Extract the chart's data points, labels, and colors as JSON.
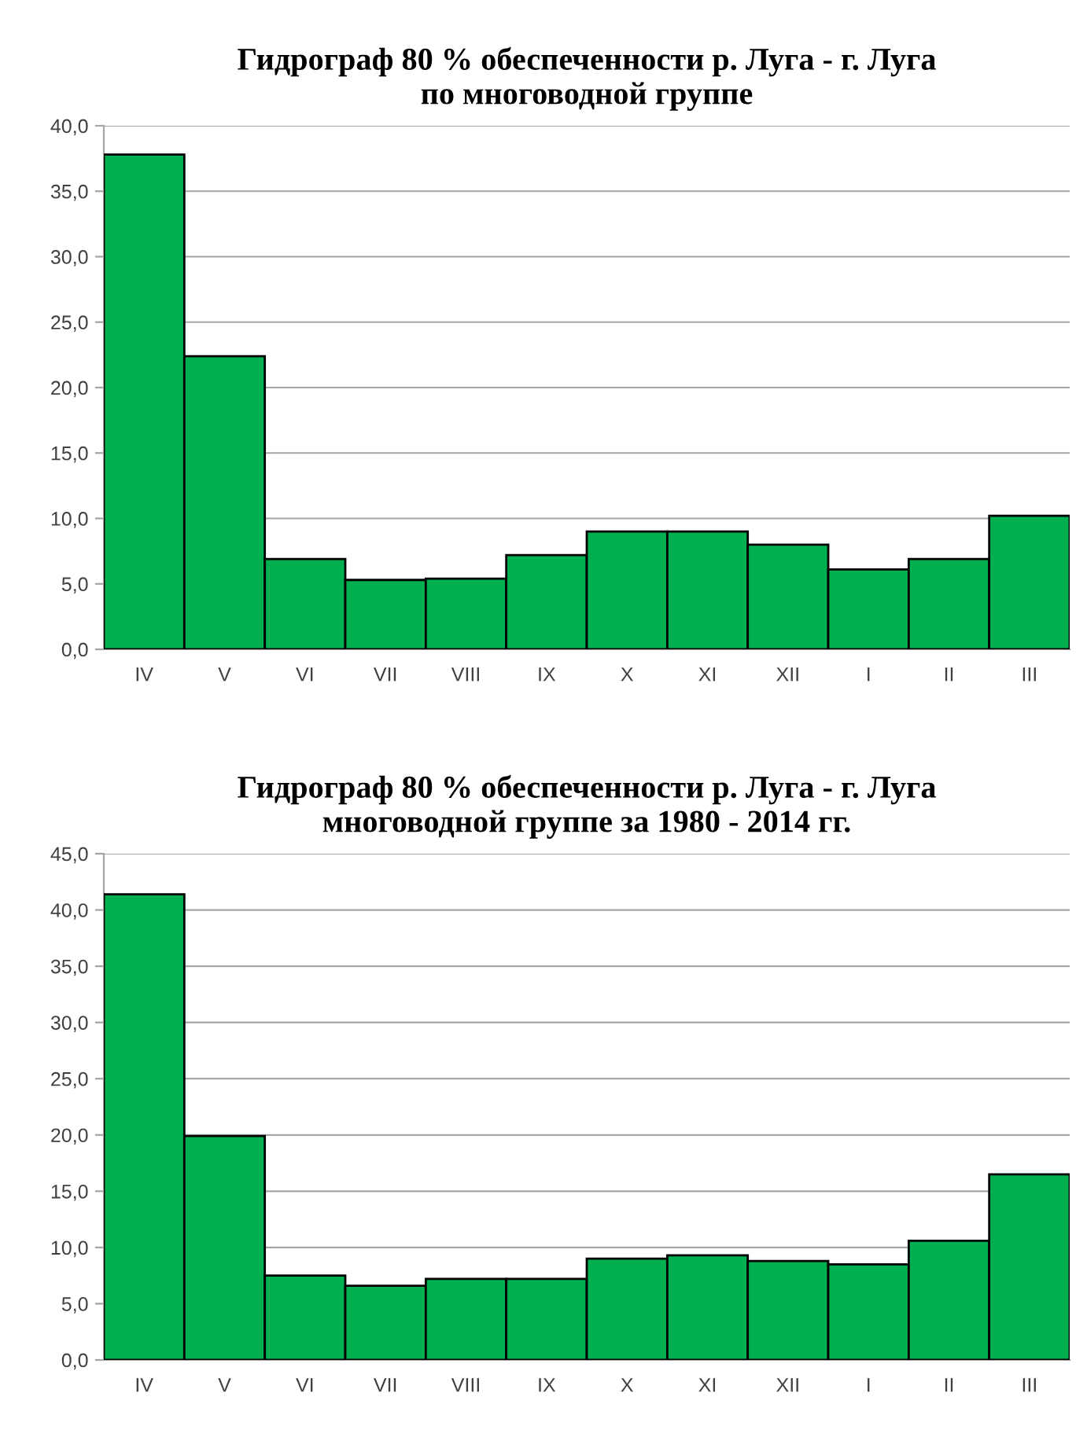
{
  "chart_data": [
    {
      "type": "bar",
      "title": "Гидрограф 80 % обеспеченности р. Луга - г. Луга\nпо многоводной группе",
      "categories": [
        "IV",
        "V",
        "VI",
        "VII",
        "VIII",
        "IX",
        "X",
        "XI",
        "XII",
        "I",
        "II",
        "III"
      ],
      "values": [
        37.8,
        22.4,
        6.9,
        5.3,
        5.4,
        7.2,
        9.0,
        9.0,
        8.0,
        6.1,
        6.9,
        10.2
      ],
      "color": "#00b050",
      "ylim": [
        0,
        40
      ],
      "yticks": [
        {
          "value": 0,
          "label": "0,0"
        },
        {
          "value": 5,
          "label": "5,0"
        },
        {
          "value": 10,
          "label": "10,0"
        },
        {
          "value": 15,
          "label": "15,0"
        },
        {
          "value": 20,
          "label": "20,0"
        },
        {
          "value": 25,
          "label": "25,0"
        },
        {
          "value": 30,
          "label": "30,0"
        },
        {
          "value": 35,
          "label": "35,0"
        },
        {
          "value": 40,
          "label": "40,0"
        }
      ],
      "grid": "y"
    },
    {
      "type": "bar",
      "title": "Гидрограф 80 % обеспеченности р. Луга - г. Луга\nмноговодной группе за 1980 - 2014 гг.",
      "categories": [
        "IV",
        "V",
        "VI",
        "VII",
        "VIII",
        "IX",
        "X",
        "XI",
        "XII",
        "I",
        "II",
        "III"
      ],
      "values": [
        41.4,
        19.9,
        7.5,
        6.6,
        7.2,
        7.2,
        9.0,
        9.3,
        8.8,
        8.5,
        10.6,
        16.5
      ],
      "color": "#00b050",
      "ylim": [
        0,
        45
      ],
      "yticks": [
        {
          "value": 0,
          "label": "0,0"
        },
        {
          "value": 5,
          "label": "5,0"
        },
        {
          "value": 10,
          "label": "10,0"
        },
        {
          "value": 15,
          "label": "15,0"
        },
        {
          "value": 20,
          "label": "20,0"
        },
        {
          "value": 25,
          "label": "25,0"
        },
        {
          "value": 30,
          "label": "30,0"
        },
        {
          "value": 35,
          "label": "35,0"
        },
        {
          "value": 40,
          "label": "40,0"
        },
        {
          "value": 45,
          "label": "45,0"
        }
      ],
      "grid": "y"
    }
  ]
}
